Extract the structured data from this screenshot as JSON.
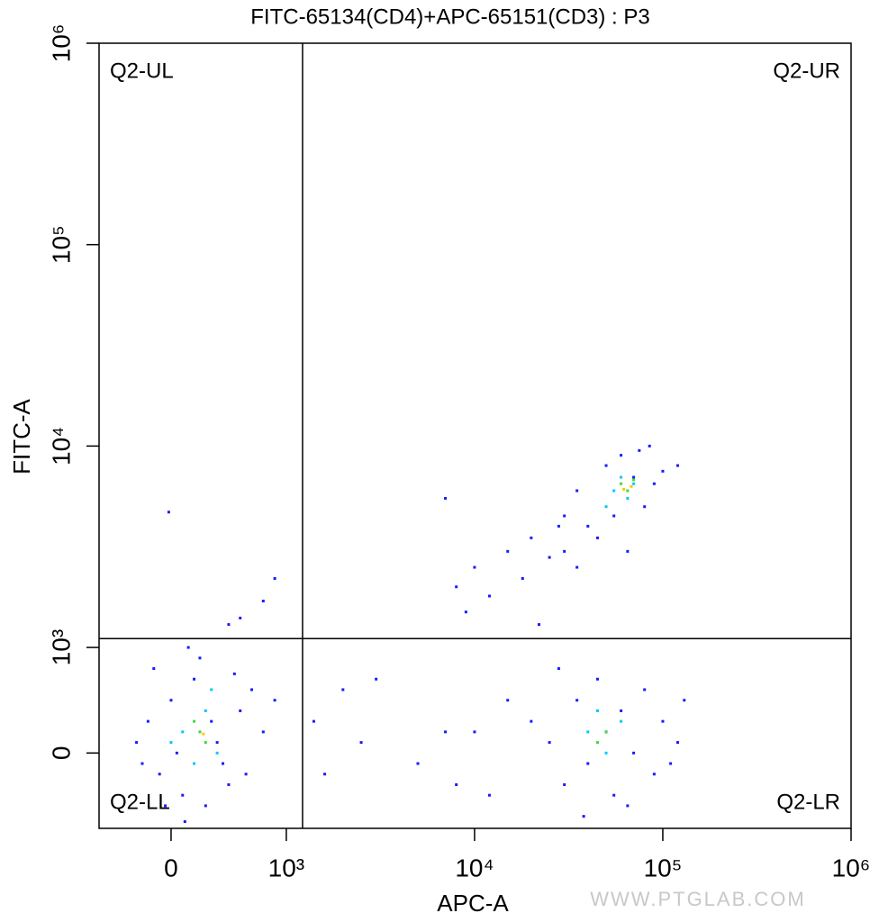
{
  "chart_data": {
    "type": "scatter",
    "title": "FITC-65134(CD4)+APC-65151(CD3) : P3",
    "x_label": "APC-A",
    "y_label": "FITC-A",
    "xscale": "biexponential",
    "yscale": "biexponential",
    "linthresh": 1000,
    "xlim": [
      -625,
      1000000
    ],
    "ylim": [
      -714,
      1000000
    ],
    "xticks": [
      0,
      {
        "value": 1000,
        "label": "10³"
      },
      {
        "value": 10000,
        "label": "10⁴"
      },
      {
        "value": 100000,
        "label": "10⁵"
      },
      {
        "value": 1000000,
        "label": "10⁶"
      }
    ],
    "yticks": [
      0,
      {
        "value": 1000,
        "label": "10³"
      },
      {
        "value": 10000,
        "label": "10⁴"
      },
      {
        "value": 100000,
        "label": "10⁵"
      },
      {
        "value": 1000000,
        "label": "10⁶"
      }
    ],
    "gates": {
      "x": 1220,
      "y": 1107
    },
    "quadrants": {
      "UL": "Q2-UL",
      "UR": "Q2-UR",
      "LL": "Q2-LL",
      "LR": "Q2-LR"
    },
    "series": [
      {
        "color": "#1a1aff",
        "x": [
          -200,
          -100,
          0,
          100,
          200,
          400,
          500,
          600,
          -300,
          50,
          300,
          700,
          -150,
          250,
          450,
          800,
          150,
          -50,
          350,
          650,
          900,
          550,
          -250,
          120,
          600,
          800,
          500,
          900,
          -20,
          25000,
          30000,
          35000,
          40000,
          45000,
          50000,
          55000,
          60000,
          70000,
          80000,
          90000,
          100000,
          120000,
          28000,
          38000,
          65000,
          20000,
          15000,
          10000,
          8000,
          130000,
          110000,
          1400,
          2000,
          2500,
          3000,
          5000,
          7000,
          1600,
          12000,
          40000,
          50000,
          60000,
          70000,
          80000,
          90000,
          100000,
          45000,
          55000,
          75000,
          35000,
          30000,
          120000,
          65000,
          85000,
          8000,
          10000,
          12000,
          15000,
          18000,
          20000,
          25000,
          28000,
          30000,
          9000,
          7000,
          22000,
          35000
        ],
        "values": [
          300,
          -200,
          500,
          -400,
          700,
          100,
          -300,
          400,
          100,
          0,
          -500,
          600,
          800,
          900,
          -100,
          200,
          1000,
          -500,
          300,
          -200,
          500,
          750,
          -100,
          -650,
          1400,
          1700,
          1300,
          2200,
          4700,
          100,
          -300,
          500,
          -100,
          700,
          200,
          -400,
          400,
          0,
          600,
          -200,
          300,
          100,
          800,
          -600,
          -500,
          300,
          500,
          200,
          -300,
          500,
          -100,
          300,
          600,
          100,
          700,
          -100,
          200,
          -200,
          -400,
          4000,
          8000,
          9000,
          7000,
          5000,
          6500,
          7500,
          3500,
          4500,
          9500,
          6000,
          4500,
          8000,
          3000,
          10000,
          2000,
          2500,
          1800,
          3000,
          2200,
          3500,
          2800,
          4000,
          3000,
          1500,
          5500,
          1300,
          2500
        ]
      },
      {
        "color": "#00c8ff",
        "x": [
          100,
          300,
          200,
          400,
          0,
          350,
          40000,
          50000,
          45000,
          60000,
          55000,
          65000,
          60000,
          50000,
          70000
        ],
        "values": [
          200,
          400,
          -100,
          0,
          100,
          600,
          200,
          0,
          400,
          300,
          6000,
          5500,
          7000,
          5000,
          6500
        ]
      },
      {
        "color": "#3cdc3c",
        "x": [
          250,
          300,
          200,
          50000,
          45000,
          60000,
          65000,
          70000
        ],
        "values": [
          200,
          100,
          300,
          200,
          100,
          6500,
          6000,
          6800
        ]
      },
      {
        "color": "#ffc800",
        "x": [
          68000,
          62000,
          280
        ],
        "values": [
          6300,
          6100,
          180
        ]
      }
    ]
  },
  "watermark": "WWW.PTGLAB.COM"
}
